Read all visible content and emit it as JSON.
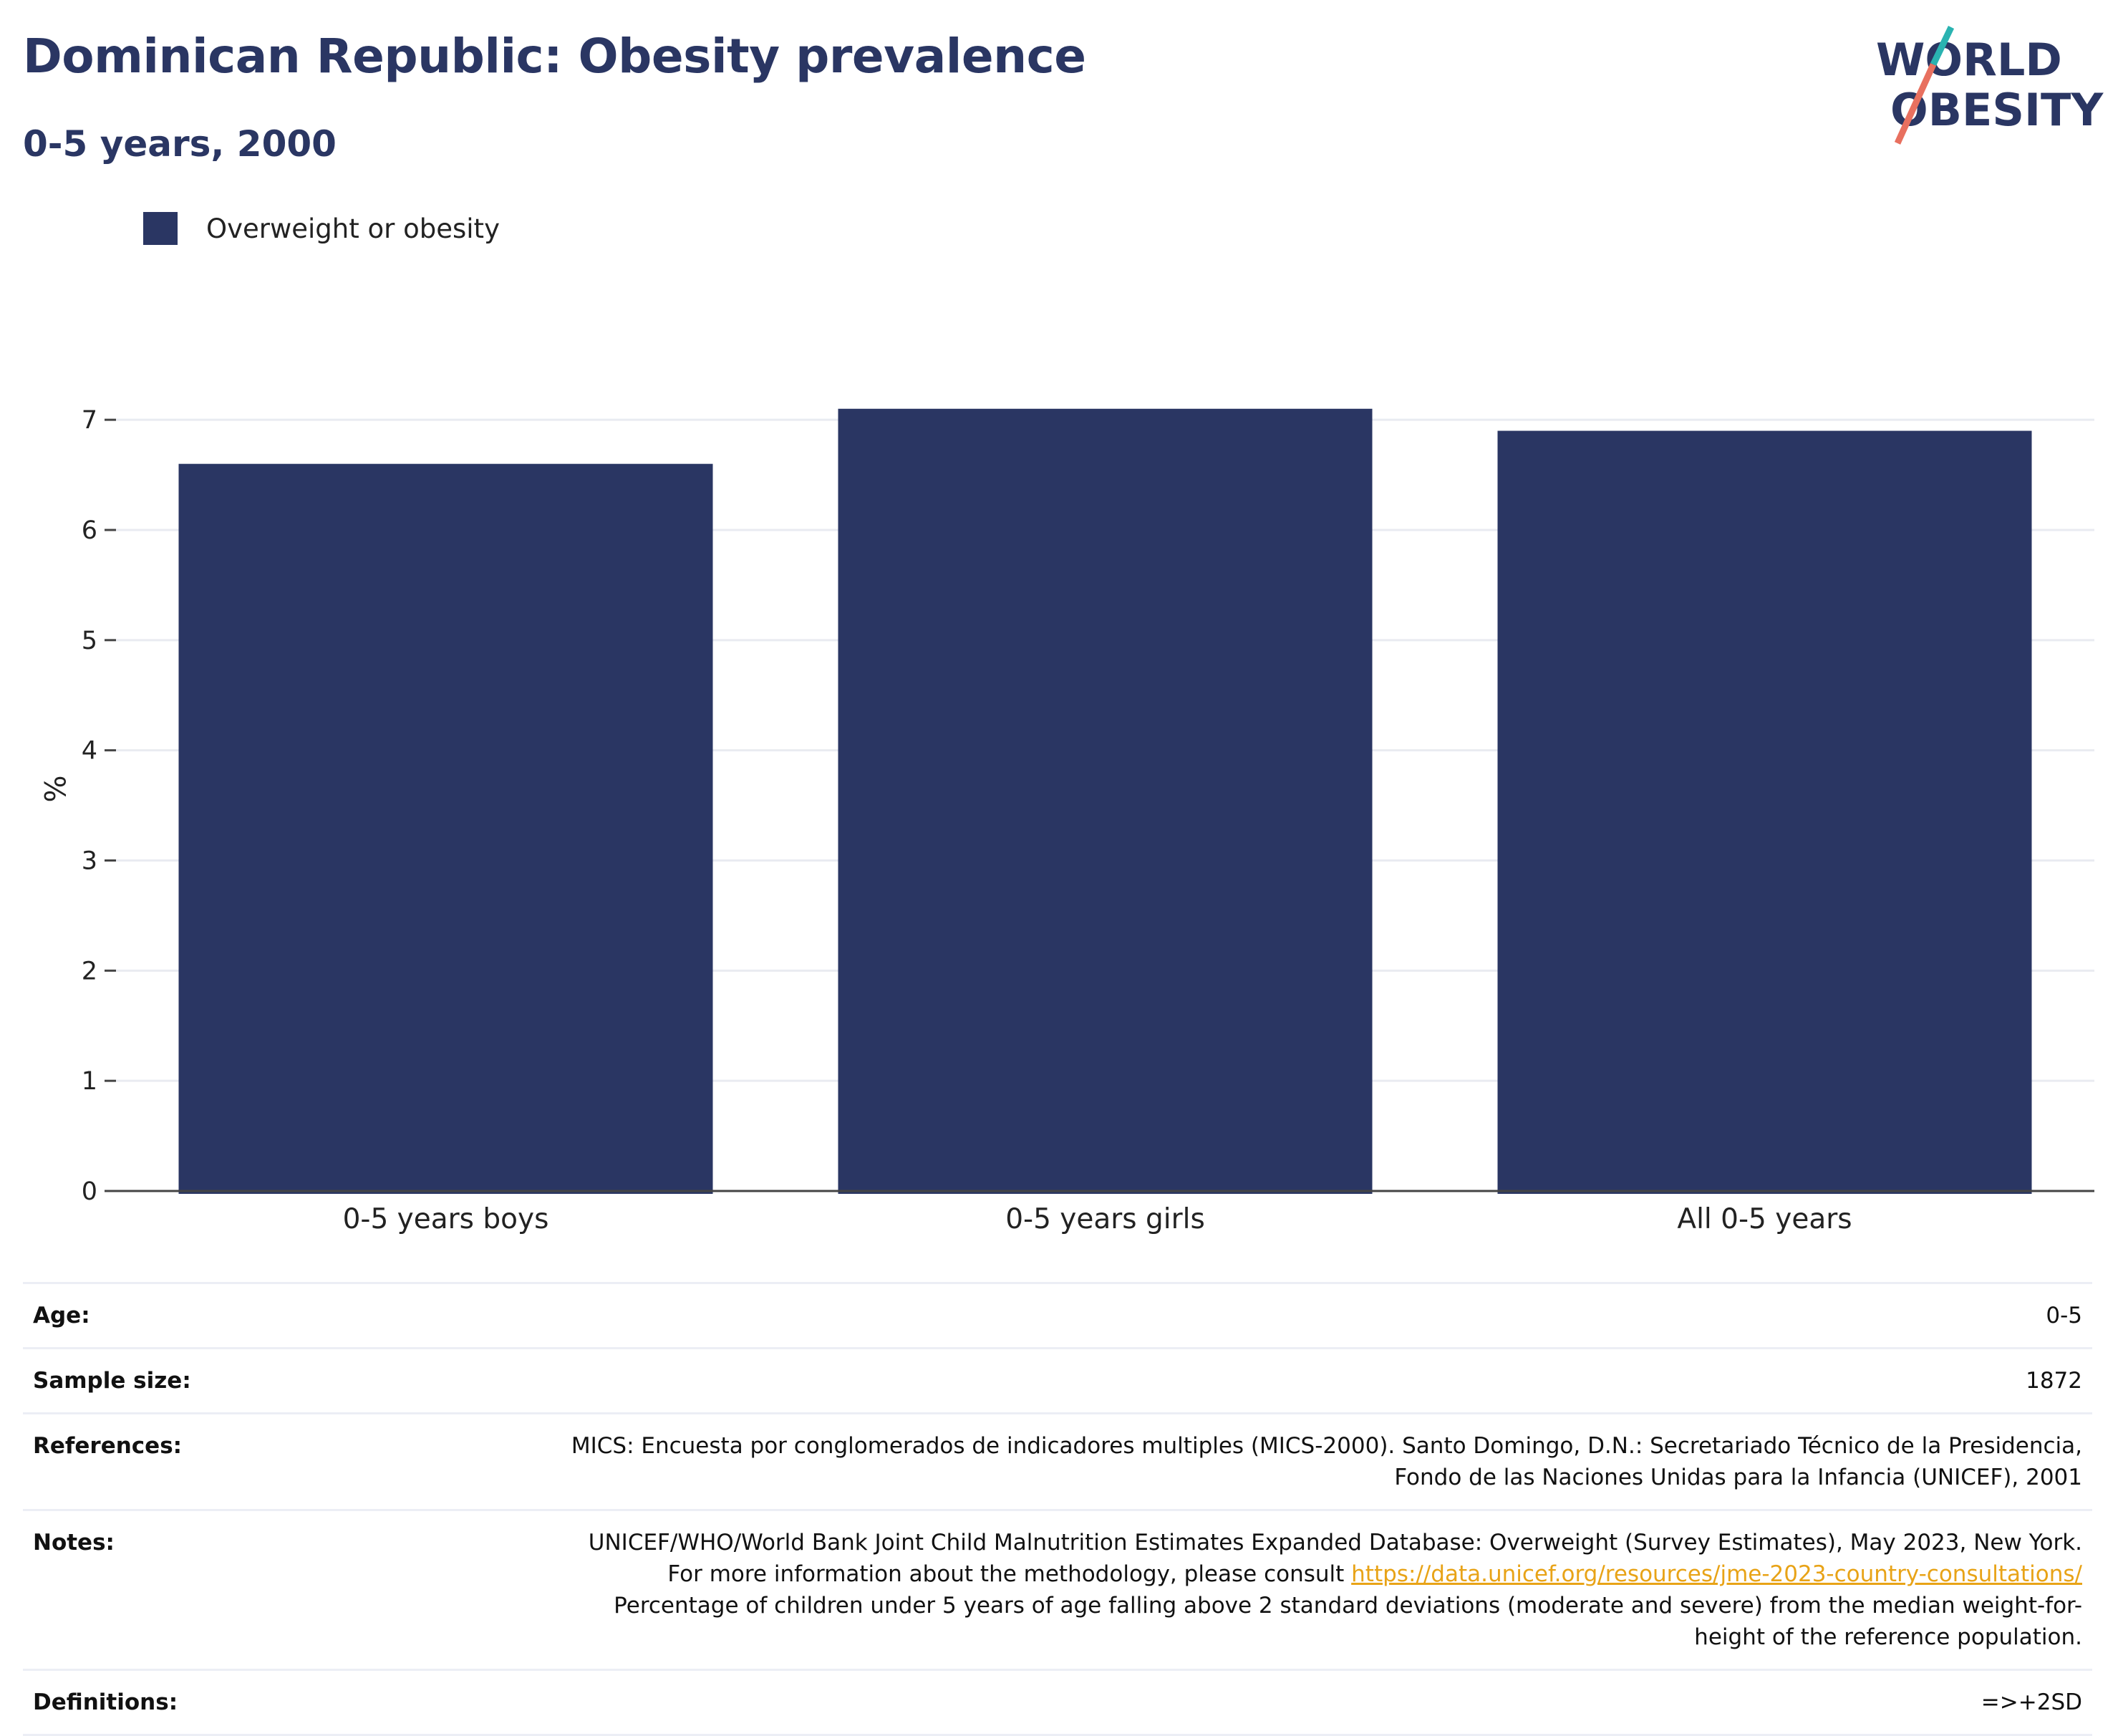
{
  "header": {
    "title": "Dominican Republic: Obesity prevalence",
    "subtitle": "0-5 years, 2000"
  },
  "logo": {
    "line1": "WORLD",
    "line2": "OBESITY",
    "colors": {
      "text": "#2a3663",
      "slash_top": "#2ab3b1",
      "slash_bottom": "#e8705f"
    }
  },
  "legend": {
    "label": "Overweight or obesity",
    "color": "#2a3663"
  },
  "chart_data": {
    "type": "bar",
    "categories": [
      "0-5 years boys",
      "0-5 years girls",
      "All 0-5 years"
    ],
    "series": [
      {
        "name": "Overweight or obesity",
        "values": [
          6.6,
          7.1,
          6.9
        ],
        "color": "#2a3663"
      }
    ],
    "title": "Dominican Republic: Obesity prevalence",
    "subtitle": "0-5 years, 2000",
    "xlabel": "",
    "ylabel": "%",
    "ylim": [
      0,
      7.3
    ],
    "yticks": [
      0,
      1,
      2,
      3,
      4,
      5,
      6,
      7
    ],
    "grid": true,
    "legend_position": "top-left"
  },
  "info": {
    "rows": [
      {
        "key": "Age:",
        "value": "0-5"
      },
      {
        "key": "Sample size:",
        "value": "1872"
      },
      {
        "key": "References:",
        "value": "MICS: Encuesta por conglomerados de indicadores multiples (MICS-2000). Santo Domingo, D.N.: Secretariado Técnico de la Presidencia, Fondo de las Naciones Unidas para la Infancia (UNICEF), 2001"
      },
      {
        "key": "Notes:",
        "value_before": "UNICEF/WHO/World Bank Joint Child Malnutrition Estimates Expanded Database: Overweight (Survey Estimates), May 2023, New York. For more information about the methodology, please consult ",
        "link": "https://data.unicef.org/resources/jme-2023-country-consultations/",
        "value_after": " Percentage of children under 5 years of age falling above 2 standard deviations (moderate and severe) from the median weight-for-height of the reference population."
      },
      {
        "key": "Definitions:",
        "value": "=>+2SD"
      }
    ]
  }
}
